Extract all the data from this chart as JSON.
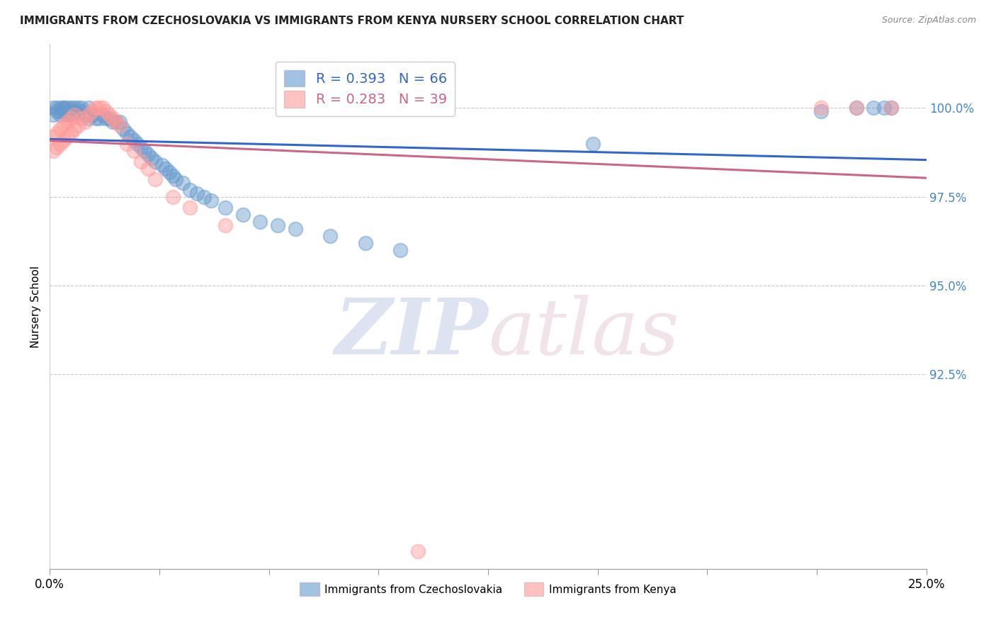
{
  "title": "IMMIGRANTS FROM CZECHOSLOVAKIA VS IMMIGRANTS FROM KENYA NURSERY SCHOOL CORRELATION CHART",
  "source": "Source: ZipAtlas.com",
  "ylabel": "Nursery School",
  "ytick_labels": [
    "100.0%",
    "97.5%",
    "95.0%",
    "92.5%"
  ],
  "ytick_values": [
    1.0,
    0.975,
    0.95,
    0.925
  ],
  "xlim": [
    0.0,
    0.25
  ],
  "ylim": [
    0.87,
    1.018
  ],
  "legend1_text": "R = 0.393   N = 66",
  "legend2_text": "R = 0.283   N = 39",
  "trendline_color1": "#3366CC",
  "trendline_color2": "#CC6688",
  "scatter_color1": "#6699CC",
  "scatter_color2": "#FF9999",
  "background_color": "#ffffff",
  "grid_color": "#c8c8c8",
  "blue_x": [
    0.001,
    0.001,
    0.002,
    0.002,
    0.003,
    0.003,
    0.003,
    0.004,
    0.004,
    0.005,
    0.005,
    0.005,
    0.006,
    0.006,
    0.007,
    0.007,
    0.008,
    0.008,
    0.009,
    0.009,
    0.01,
    0.011,
    0.011,
    0.012,
    0.013,
    0.014,
    0.015,
    0.016,
    0.017,
    0.018,
    0.019,
    0.02,
    0.021,
    0.022,
    0.023,
    0.024,
    0.025,
    0.026,
    0.027,
    0.028,
    0.029,
    0.03,
    0.032,
    0.033,
    0.034,
    0.035,
    0.036,
    0.038,
    0.04,
    0.042,
    0.044,
    0.046,
    0.05,
    0.055,
    0.06,
    0.065,
    0.07,
    0.08,
    0.09,
    0.1,
    0.155,
    0.22,
    0.23,
    0.235,
    0.238,
    0.24
  ],
  "blue_y": [
    0.998,
    1.0,
    0.999,
    1.0,
    0.998,
    0.999,
    1.0,
    1.0,
    1.0,
    0.998,
    0.999,
    1.0,
    0.998,
    1.0,
    0.999,
    1.0,
    0.998,
    1.0,
    0.999,
    1.0,
    0.998,
    0.997,
    1.0,
    0.998,
    0.997,
    0.997,
    0.998,
    0.997,
    0.997,
    0.996,
    0.996,
    0.996,
    0.994,
    0.993,
    0.992,
    0.991,
    0.99,
    0.989,
    0.988,
    0.987,
    0.986,
    0.985,
    0.984,
    0.983,
    0.982,
    0.981,
    0.98,
    0.979,
    0.977,
    0.976,
    0.975,
    0.974,
    0.972,
    0.97,
    0.968,
    0.967,
    0.966,
    0.964,
    0.962,
    0.96,
    0.99,
    0.999,
    1.0,
    1.0,
    1.0,
    1.0
  ],
  "pink_x": [
    0.001,
    0.001,
    0.002,
    0.002,
    0.003,
    0.003,
    0.004,
    0.004,
    0.005,
    0.005,
    0.006,
    0.006,
    0.007,
    0.007,
    0.008,
    0.009,
    0.01,
    0.011,
    0.012,
    0.013,
    0.014,
    0.015,
    0.016,
    0.017,
    0.018,
    0.019,
    0.02,
    0.022,
    0.024,
    0.026,
    0.028,
    0.03,
    0.035,
    0.04,
    0.05,
    0.105,
    0.22,
    0.23,
    0.24
  ],
  "pink_y": [
    0.988,
    0.992,
    0.989,
    0.993,
    0.99,
    0.994,
    0.991,
    0.995,
    0.992,
    0.996,
    0.993,
    0.997,
    0.994,
    0.998,
    0.995,
    0.997,
    0.996,
    0.998,
    0.999,
    1.0,
    1.0,
    1.0,
    0.999,
    0.998,
    0.997,
    0.996,
    0.995,
    0.99,
    0.988,
    0.985,
    0.983,
    0.98,
    0.975,
    0.972,
    0.967,
    0.875,
    1.0,
    1.0,
    1.0
  ]
}
